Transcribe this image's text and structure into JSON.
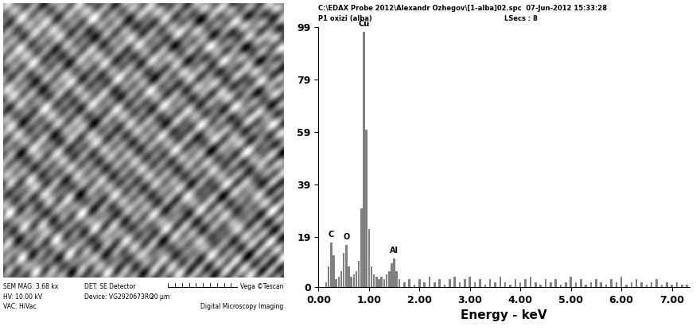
{
  "chart_data": {
    "type": "bar",
    "title": "C:\\EDAX Probe 2012\\Alexandr Ozhegov\\[1-alba]02.spc  07-Jun-2012 15:33:28",
    "subtitle": "P1 oxizi (alba)",
    "annotations": [
      {
        "text": "LSecs : 8"
      }
    ],
    "peak_labels": [
      {
        "text": "C",
        "x": 0.25
      },
      {
        "text": "O",
        "x": 0.55
      },
      {
        "text": "Cu",
        "x": 0.9
      },
      {
        "text": "Al",
        "x": 1.5
      }
    ],
    "x_label": "Energy - keV",
    "x": [
      0.15,
      0.2,
      0.25,
      0.3,
      0.35,
      0.4,
      0.45,
      0.5,
      0.55,
      0.6,
      0.65,
      0.7,
      0.75,
      0.8,
      0.85,
      0.9,
      0.95,
      1.0,
      1.05,
      1.1,
      1.15,
      1.2,
      1.25,
      1.3,
      1.35,
      1.4,
      1.45,
      1.5,
      1.55,
      1.6,
      1.7,
      1.8,
      1.9,
      2.0,
      2.1,
      2.2,
      2.3,
      2.4,
      2.5,
      2.6,
      2.7,
      2.8,
      2.9,
      3.0,
      3.1,
      3.2,
      3.3,
      3.4,
      3.5,
      3.6,
      3.7,
      3.8,
      3.9,
      4.0,
      4.1,
      4.2,
      4.3,
      4.4,
      4.5,
      4.6,
      4.7,
      4.8,
      4.9,
      5.0,
      5.1,
      5.2,
      5.3,
      5.4,
      5.5,
      5.6,
      5.7,
      5.8,
      5.9,
      6.0,
      6.1,
      6.2,
      6.3,
      6.4,
      6.5,
      6.6,
      6.7,
      6.8,
      6.9,
      7.0,
      7.1,
      7.2,
      7.3
    ],
    "values": [
      2,
      8,
      17,
      12,
      3,
      4,
      6,
      13,
      16,
      8,
      4,
      5,
      6,
      10,
      30,
      97,
      60,
      22,
      8,
      5,
      4,
      3,
      4,
      3,
      5,
      6,
      9,
      11,
      6,
      3,
      2,
      3,
      1,
      3,
      2,
      4,
      2,
      3,
      1,
      3,
      4,
      2,
      3,
      4,
      2,
      3,
      1,
      3,
      2,
      4,
      2,
      1,
      3,
      2,
      3,
      4,
      2,
      1,
      3,
      2,
      3,
      1,
      2,
      4,
      2,
      3,
      1,
      2,
      3,
      2,
      1,
      3,
      2,
      4,
      1,
      2,
      3,
      2,
      1,
      2,
      3,
      1,
      2,
      1,
      2,
      1,
      1
    ],
    "color": "#808080",
    "xlim": [
      0,
      7.35
    ],
    "ylim": [
      0,
      99
    ],
    "xticks": [
      {
        "value": 0,
        "label": "0.00"
      },
      {
        "value": 1,
        "label": "1.00"
      },
      {
        "value": 2,
        "label": "2.00"
      },
      {
        "value": 3,
        "label": "3.00"
      },
      {
        "value": 4,
        "label": "4.00"
      },
      {
        "value": 5,
        "label": "5.00"
      },
      {
        "value": 6,
        "label": "6.00"
      },
      {
        "value": 7,
        "label": "7.00"
      }
    ],
    "yticks": [
      0,
      19,
      39,
      59,
      79,
      99
    ],
    "grid": false
  },
  "micrograph": {
    "texts": [
      "SEM MAG: 3.68 kx",
      "DET: SE Detector",
      "HV: 10.00 kV",
      "Device: VG2920673RO",
      "20 μm",
      "VAC: HiVac",
      "Vega ©Tescan",
      "Digital Microscopy Imaging"
    ]
  }
}
